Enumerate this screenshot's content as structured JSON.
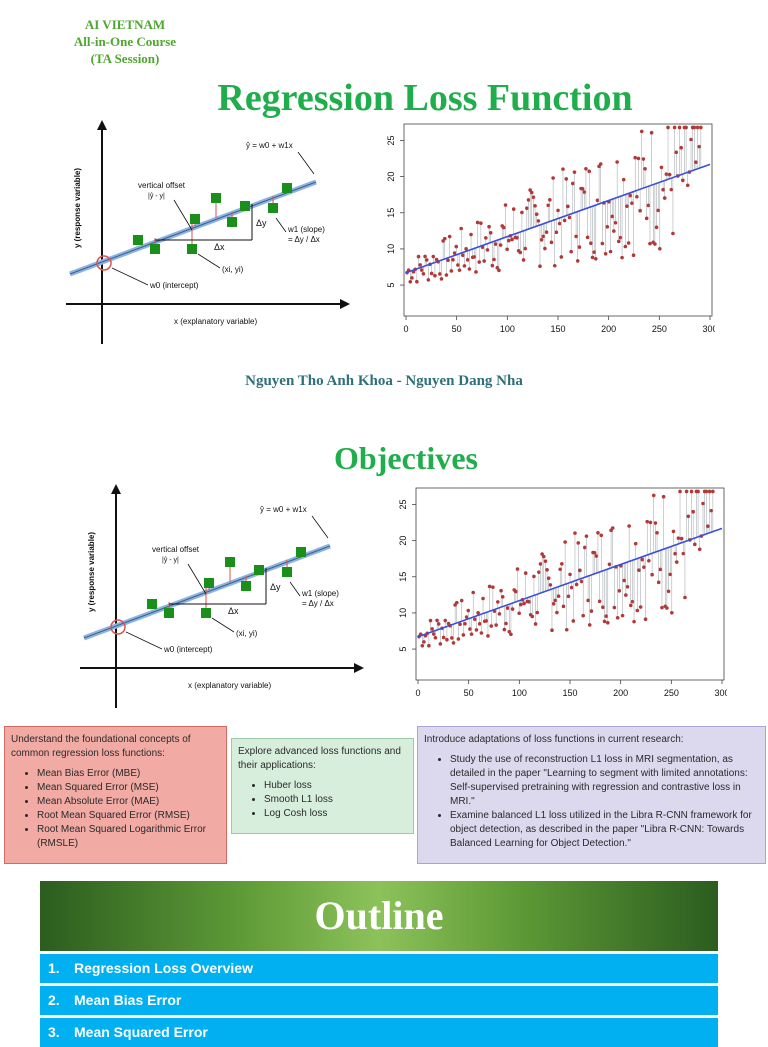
{
  "header": {
    "org": "AI VIETNAM",
    "course": "All-in-One Course",
    "session": "(TA Session)"
  },
  "title": "Regression Loss Function",
  "authors": "Nguyen Tho Anh Khoa - Nguyen Dang Nha",
  "objectives_title": "Objectives",
  "diagram": {
    "equation": "ŷ = w0 + w1x",
    "ylabel": "y (response variable)",
    "xlabel": "x (explanatory variable)",
    "vertical_offset": "vertical offset",
    "offset_formula": "|ŷ - y|",
    "delta_y": "Δy",
    "delta_x": "Δx",
    "slope_label": "w1 (slope)",
    "slope_formula": "= Δy / Δx",
    "point_label": "(xi, yi)",
    "intercept_label": "w0 (intercept)"
  },
  "chart_data": {
    "type": "scatter",
    "x_ticks": [
      "0",
      "50",
      "100",
      "150",
      "200",
      "250",
      "300"
    ],
    "y_ticks": [
      "5",
      "10",
      "15",
      "20",
      "25"
    ],
    "xlim": [
      0,
      300
    ],
    "ylim": [
      1,
      27
    ],
    "fit_line": {
      "intercept": 6.7,
      "slope": 0.05
    },
    "colors": {
      "points": "#b03a3a",
      "line": "#3b4fd8",
      "residuals": "#9aa0a6"
    }
  },
  "boxes": {
    "left": {
      "intro": "Understand the foundational concepts of common regression loss functions:",
      "items": [
        "Mean Bias Error (MBE)",
        "Mean Squared Error (MSE)",
        "Mean Absolute Error (MAE)",
        "Root Mean Squared Error (RMSE)",
        "Root Mean Squared Logarithmic Error (RMSLE)"
      ]
    },
    "middle": {
      "intro": "Explore advanced loss functions and their applications:",
      "items": [
        "Huber loss",
        "Smooth L1 loss",
        "Log Cosh loss"
      ]
    },
    "right": {
      "intro": "Introduce adaptations of loss functions in current research:",
      "items": [
        "Study the use of reconstruction L1 loss in MRI segmentation, as detailed in the paper \"Learning to segment with limited annotations: Self-supervised pretraining with regression and contrastive loss in MRI.\"",
        "Examine balanced L1 loss utilized in the Libra R-CNN framework for object detection, as described in the paper \"Libra R-CNN: Towards Balanced Learning for Object Detection.\""
      ]
    }
  },
  "outline": {
    "title": "Outline",
    "items": [
      {
        "num": "1.",
        "label": "Regression Loss Overview"
      },
      {
        "num": "2.",
        "label": "Mean Bias Error"
      },
      {
        "num": "3.",
        "label": "Mean Squared Error"
      }
    ]
  }
}
